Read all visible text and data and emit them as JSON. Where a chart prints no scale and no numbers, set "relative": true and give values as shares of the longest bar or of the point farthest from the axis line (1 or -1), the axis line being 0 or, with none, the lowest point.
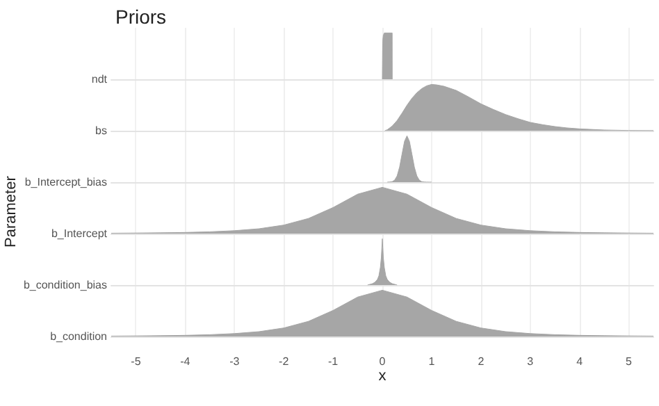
{
  "chart_data": [
    {
      "type": "area",
      "title": "Priors",
      "relative": true,
      "xlim": [
        -5.5,
        5.5
      ],
      "xticks": [
        -5,
        -4,
        -3,
        -2,
        -1,
        0,
        1,
        2,
        3,
        4,
        5
      ],
      "grid": "x",
      "legend": false,
      "tick_labels": false,
      "series": [
        {
          "name": "ndt",
          "color": "#a6a6a6",
          "x": [
            0,
            0.005,
            0.01,
            0.02,
            0.04,
            0.2,
            0.201
          ],
          "values": [
            0,
            0.6,
            0.85,
            0.95,
            1,
            1,
            0
          ]
        }
      ]
    },
    {
      "type": "area",
      "relative": true,
      "xlim": [
        -5.5,
        5.5
      ],
      "xticks": [
        -5,
        -4,
        -3,
        -2,
        -1,
        0,
        1,
        2,
        3,
        4,
        5
      ],
      "grid": "x",
      "legend": false,
      "tick_labels": false,
      "series": [
        {
          "name": "bs",
          "color": "#a6a6a6",
          "x": [
            0.05,
            0.1,
            0.2,
            0.3,
            0.4,
            0.5,
            0.6,
            0.7,
            0.8,
            0.9,
            1,
            1.1,
            1.25,
            1.5,
            1.75,
            2,
            2.25,
            2.5,
            2.75,
            3,
            3.25,
            3.5,
            3.75,
            4,
            4.5,
            5,
            5.5
          ],
          "values": [
            0,
            0.02,
            0.1,
            0.22,
            0.38,
            0.55,
            0.7,
            0.82,
            0.91,
            0.97,
            1,
            0.99,
            0.96,
            0.87,
            0.73,
            0.58,
            0.46,
            0.35,
            0.26,
            0.18,
            0.13,
            0.09,
            0.06,
            0.04,
            0.015,
            0.005,
            0.002
          ]
        }
      ]
    },
    {
      "type": "area",
      "relative": true,
      "xlim": [
        -5.5,
        5.5
      ],
      "xticks": [
        -5,
        -4,
        -3,
        -2,
        -1,
        0,
        1,
        2,
        3,
        4,
        5
      ],
      "grid": "x",
      "legend": false,
      "tick_labels": false,
      "series": [
        {
          "name": "b_Intercept_bias",
          "color": "#a6a6a6",
          "x": [
            0.1,
            0.15,
            0.2,
            0.25,
            0.3,
            0.35,
            0.4,
            0.45,
            0.5,
            0.55,
            0.6,
            0.65,
            0.7,
            0.75,
            0.8,
            0.85,
            0.9,
            0.95,
            1.0
          ],
          "values": [
            0,
            0.003,
            0.011,
            0.044,
            0.135,
            0.325,
            0.607,
            0.882,
            1,
            0.882,
            0.607,
            0.325,
            0.135,
            0.044,
            0.011,
            0.003,
            0.001,
            0.0005,
            0
          ]
        }
      ]
    },
    {
      "type": "area",
      "relative": true,
      "xlim": [
        -5.5,
        5.5
      ],
      "xticks": [
        -5,
        -4,
        -3,
        -2,
        -1,
        0,
        1,
        2,
        3,
        4,
        5
      ],
      "grid": "x",
      "legend": false,
      "tick_labels": false,
      "annotations": [
        "Parameter"
      ],
      "series": [
        {
          "name": "b_Intercept",
          "color": "#a6a6a6",
          "x": [
            -5.5,
            -5,
            -4.5,
            -4,
            -3.5,
            -3,
            -2.5,
            -2,
            -1.5,
            -1,
            -0.5,
            0,
            0.5,
            1,
            1.5,
            2,
            2.5,
            3,
            3.5,
            4,
            4.5,
            5,
            5.5
          ],
          "values": [
            0.008,
            0.012,
            0.017,
            0.025,
            0.039,
            0.063,
            0.105,
            0.184,
            0.327,
            0.563,
            0.852,
            1,
            0.852,
            0.563,
            0.327,
            0.184,
            0.105,
            0.063,
            0.039,
            0.025,
            0.017,
            0.012,
            0.008
          ]
        }
      ]
    },
    {
      "type": "area",
      "relative": true,
      "xlim": [
        -5.5,
        5.5
      ],
      "xticks": [
        -5,
        -4,
        -3,
        -2,
        -1,
        0,
        1,
        2,
        3,
        4,
        5
      ],
      "grid": "x",
      "legend": false,
      "tick_labels": false,
      "series": [
        {
          "name": "b_condition_bias",
          "color": "#a6a6a6",
          "x": [
            -0.3,
            -0.2,
            -0.15,
            -0.1,
            -0.07,
            -0.04,
            -0.02,
            -0.01,
            0,
            0.01,
            0.02,
            0.04,
            0.07,
            0.1,
            0.15,
            0.2,
            0.3
          ],
          "values": [
            0,
            0.03,
            0.06,
            0.12,
            0.2,
            0.38,
            0.6,
            0.8,
            1,
            0.8,
            0.6,
            0.38,
            0.2,
            0.12,
            0.06,
            0.03,
            0
          ]
        }
      ]
    },
    {
      "type": "area",
      "xlabel": "x",
      "relative": true,
      "xlim": [
        -5.5,
        5.5
      ],
      "xticks": [
        -5,
        -4,
        -3,
        -2,
        -1,
        0,
        1,
        2,
        3,
        4,
        5
      ],
      "grid": "x",
      "legend": false,
      "tick_labels": "x",
      "series": [
        {
          "name": "b_condition",
          "color": "#a6a6a6",
          "x": [
            -5.5,
            -5,
            -4.5,
            -4,
            -3.5,
            -3,
            -2.5,
            -2,
            -1.5,
            -1,
            -0.5,
            0,
            0.5,
            1,
            1.5,
            2,
            2.5,
            3,
            3.5,
            4,
            4.5,
            5,
            5.5
          ],
          "values": [
            0.008,
            0.012,
            0.017,
            0.025,
            0.039,
            0.063,
            0.105,
            0.184,
            0.327,
            0.563,
            0.852,
            1,
            0.852,
            0.563,
            0.327,
            0.184,
            0.105,
            0.063,
            0.039,
            0.025,
            0.017,
            0.012,
            0.008
          ]
        }
      ]
    }
  ]
}
